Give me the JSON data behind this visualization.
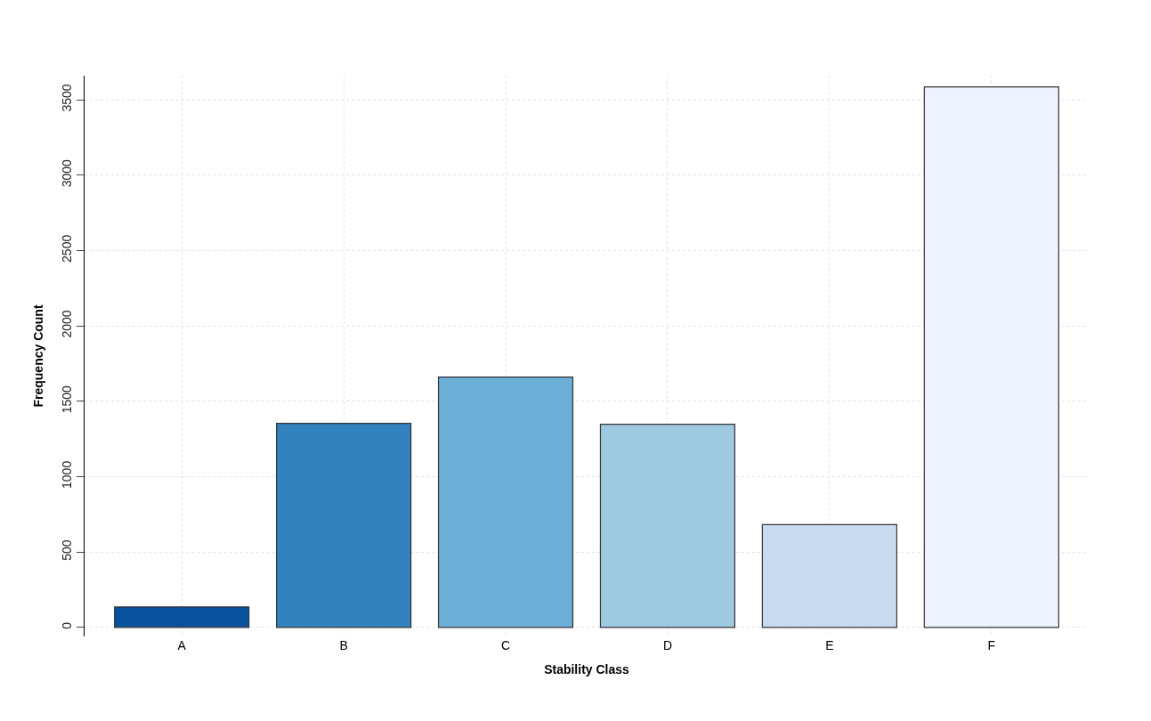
{
  "chart_data": {
    "type": "bar",
    "xlabel": "Stability Class",
    "ylabel": "Frequency Count",
    "categories": [
      "A",
      "B",
      "C",
      "D",
      "E",
      "F"
    ],
    "values": [
      136,
      1353,
      1661,
      1347,
      682,
      3585
    ],
    "colors": [
      "#08519c",
      "#3182bd",
      "#6baed6",
      "#9ecae1",
      "#c6dbef",
      "#eff3ff"
    ],
    "ylim": [
      -60,
      3660
    ],
    "yticks": [
      0,
      500,
      1000,
      1500,
      2000,
      2500,
      3000,
      3500
    ],
    "grid": true
  }
}
